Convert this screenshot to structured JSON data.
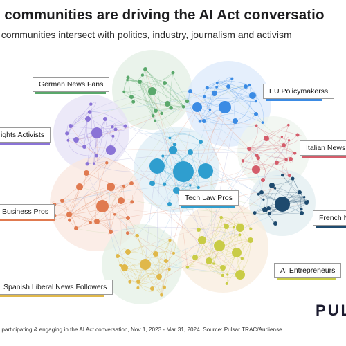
{
  "header": {
    "title": "h communities are driving the AI Act conversatio",
    "subtitle": "t communities intersect with politics, industry, journalism and activism"
  },
  "communities": [
    {
      "label": "German News Fans",
      "color": "#5aa86b",
      "fill": "#e3efe4"
    },
    {
      "label": "EU Policymakerss",
      "color": "#3b8be4",
      "fill": "#dce9fb"
    },
    {
      "label": "ights Activists",
      "color": "#8a73d6",
      "fill": "#e6e2f5"
    },
    {
      "label": "Italian News B",
      "color": "#d45d6b",
      "fill": "#eef4ee"
    },
    {
      "label": "Tech Law Pros",
      "color": "#2f9ecf",
      "fill": "#ddeef6"
    },
    {
      "label": "Business Pros",
      "color": "#e07a50",
      "fill": "#fae7df"
    },
    {
      "label": "French Ne",
      "color": "#1e4a6e",
      "fill": "#e2eef0"
    },
    {
      "label": "AI Entrepreneurs",
      "color": "#c9cc46",
      "fill": "#f8ecde"
    },
    {
      "label": "Spanish Liberal News Followers",
      "color": "#e0b84a",
      "fill": "#e4f0e6"
    }
  ],
  "footer": {
    "text": "s participating & engaging in the AI Act conversation, Nov 1, 2023 - Mar 31, 2024. Source: Pulsar TRAC/Audiense"
  },
  "brand": {
    "logo_text": "PUL"
  }
}
